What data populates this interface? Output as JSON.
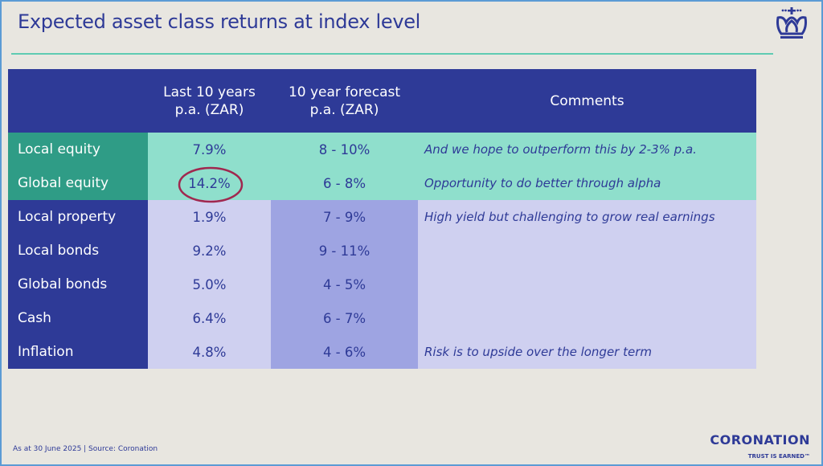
{
  "title": "Expected asset class returns at index level",
  "table": {
    "headers": [
      "",
      "Last 10 years\np.a. (ZAR)",
      "10 year forecast\np.a. (ZAR)",
      "Comments"
    ],
    "rows": [
      {
        "asset": "Local equity",
        "last10": "7.9%",
        "forecast": "8 - 10%",
        "comment": "And we hope to outperform this by 2-3% p.a."
      },
      {
        "asset": "Global equity",
        "last10": "14.2%",
        "forecast": "6 - 8%",
        "comment": "Opportunity to do better through alpha"
      },
      {
        "asset": "Local property",
        "last10": "1.9%",
        "forecast": "7 - 9%",
        "comment": "High yield but challenging to grow real earnings"
      },
      {
        "asset": "Local bonds",
        "last10": "9.2%",
        "forecast": "9 - 11%",
        "comment": ""
      },
      {
        "asset": "Global bonds",
        "last10": "5.0%",
        "forecast": "4 - 5%",
        "comment": ""
      },
      {
        "asset": "Cash",
        "last10": "6.4%",
        "forecast": "6 - 7%",
        "comment": ""
      },
      {
        "asset": "Inflation",
        "last10": "4.8%",
        "forecast": "4 - 6%",
        "comment": "Risk is to upside over the longer term"
      }
    ]
  },
  "footer": "As at 30 June 2025 | Source: Coronation",
  "brand": {
    "name": "CORONATION",
    "tagline": "TRUST IS EARNED™",
    "icon": "crown-icon"
  },
  "colors": {
    "header": "#2e3a97",
    "teal": "#8fdfcc",
    "lavender": "#cfd0f0",
    "highlight_circle": "#a0284f"
  }
}
